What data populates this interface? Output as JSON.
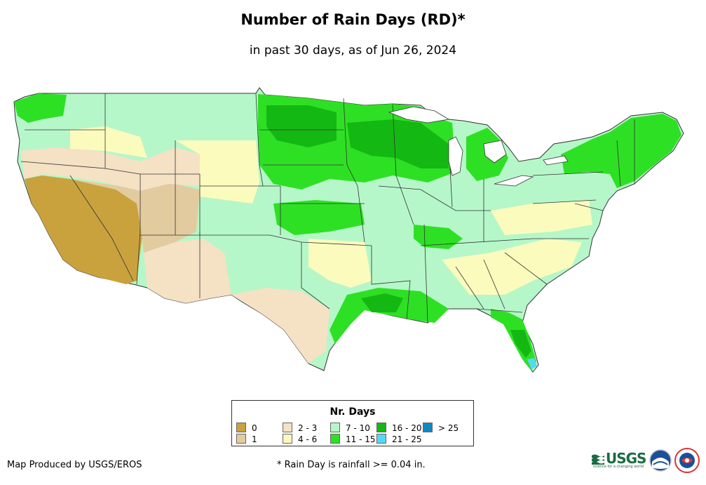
{
  "title": "Number of Rain Days (RD)*",
  "subtitle": "in past 30 days, as of Jun 26, 2024",
  "legend": {
    "title": "Nr. Days",
    "items": [
      {
        "label": "0",
        "color": "#c9a23e"
      },
      {
        "label": "1",
        "color": "#e3cba0"
      },
      {
        "label": "2 - 3",
        "color": "#f5e1c4"
      },
      {
        "label": "4 - 6",
        "color": "#fbfbbd"
      },
      {
        "label": "7 - 10",
        "color": "#b5f7c9"
      },
      {
        "label": "11 - 15",
        "color": "#2ee024"
      },
      {
        "label": "16 - 20",
        "color": "#14b812"
      },
      {
        "label": "21 - 25",
        "color": "#56d8f5"
      },
      {
        "label": "> 25",
        "color": "#1088c4"
      }
    ]
  },
  "credit": "Map Produced by USGS/EROS",
  "footnote": "* Rain Day is rainfall >= 0.04 in.",
  "logos": {
    "usgs": "USGS",
    "usgs_tagline": "science for a changing world",
    "noaa": "noaa-logo",
    "nws": "nws-logo"
  }
}
